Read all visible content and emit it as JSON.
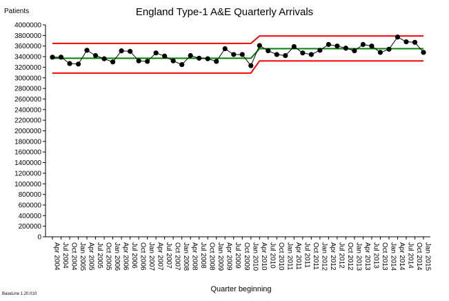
{
  "page": {
    "title": "England Type-1 A&E Quarterly Arrivals",
    "y_axis_label": "Patients",
    "x_axis_label": "Quarter beginning",
    "footnote": "BaseLine 1.20.010"
  },
  "colors": {
    "data_line": "#000000",
    "marker": "#000000",
    "mean_line": "#008000",
    "control_limits": "#ff0000",
    "axis": "#000000"
  },
  "chart_data": {
    "type": "line",
    "title": "England Type-1 A&E Quarterly Arrivals",
    "xlabel": "Quarter beginning",
    "ylabel": "Patients",
    "ylim": [
      0,
      4000000
    ],
    "y_ticks": [
      0,
      200000,
      400000,
      600000,
      800000,
      1000000,
      1200000,
      1400000,
      1600000,
      1800000,
      2000000,
      2200000,
      2400000,
      2600000,
      2800000,
      3000000,
      3200000,
      3400000,
      3600000,
      3800000,
      4000000
    ],
    "grid": false,
    "categories": [
      "Apr 2004",
      "Jul 2004",
      "Oct 2004",
      "Jan 2005",
      "Apr 2005",
      "Jul 2005",
      "Oct 2005",
      "Jan 2006",
      "Apr 2006",
      "Jul 2006",
      "Oct 2006",
      "Jan 2007",
      "Apr 2007",
      "Jul 2007",
      "Oct 2007",
      "Jan 2008",
      "Apr 2008",
      "Jul 2008",
      "Oct 2008",
      "Jan 2009",
      "Apr 2009",
      "Jul 2009",
      "Oct 2009",
      "Jan 2010",
      "Apr 2010",
      "Jul 2010",
      "Oct 2010",
      "Jan 2011",
      "Apr 2011",
      "Jul 2011",
      "Oct 2011",
      "Jan 2012",
      "Apr 2012",
      "Jul 2012",
      "Oct 2012",
      "Jan 2013",
      "Apr 2013",
      "Jul 2013",
      "Oct 2013",
      "Jan 2014",
      "Apr 2014",
      "Jul 2014",
      "Oct 2014",
      "Jan 2015"
    ],
    "series": [
      {
        "role": "data",
        "values": [
          3390000,
          3390000,
          3270000,
          3260000,
          3520000,
          3420000,
          3360000,
          3300000,
          3510000,
          3500000,
          3320000,
          3310000,
          3470000,
          3410000,
          3320000,
          3250000,
          3420000,
          3370000,
          3360000,
          3310000,
          3550000,
          3440000,
          3440000,
          3230000,
          3610000,
          3510000,
          3440000,
          3420000,
          3590000,
          3470000,
          3440000,
          3520000,
          3630000,
          3600000,
          3560000,
          3510000,
          3630000,
          3600000,
          3480000,
          3540000,
          3770000,
          3680000,
          3670000,
          3480000
        ]
      },
      {
        "role": "mean",
        "values": [
          3370000,
          3370000,
          3370000,
          3370000,
          3370000,
          3370000,
          3370000,
          3370000,
          3370000,
          3370000,
          3370000,
          3370000,
          3370000,
          3370000,
          3370000,
          3370000,
          3370000,
          3370000,
          3370000,
          3370000,
          3370000,
          3370000,
          3370000,
          3370000,
          3550000,
          3550000,
          3550000,
          3550000,
          3550000,
          3550000,
          3550000,
          3550000,
          3550000,
          3550000,
          3550000,
          3550000,
          3550000,
          3550000,
          3550000,
          3550000,
          3550000,
          3550000,
          3550000,
          3550000
        ]
      },
      {
        "role": "upper_limit",
        "values": [
          3650000,
          3650000,
          3650000,
          3650000,
          3650000,
          3650000,
          3650000,
          3650000,
          3650000,
          3650000,
          3650000,
          3650000,
          3650000,
          3650000,
          3650000,
          3650000,
          3650000,
          3650000,
          3650000,
          3650000,
          3650000,
          3650000,
          3650000,
          3650000,
          3790000,
          3790000,
          3790000,
          3790000,
          3790000,
          3790000,
          3790000,
          3790000,
          3790000,
          3790000,
          3790000,
          3790000,
          3790000,
          3790000,
          3790000,
          3790000,
          3790000,
          3790000,
          3790000,
          3790000
        ]
      },
      {
        "role": "lower_limit",
        "values": [
          3090000,
          3090000,
          3090000,
          3090000,
          3090000,
          3090000,
          3090000,
          3090000,
          3090000,
          3090000,
          3090000,
          3090000,
          3090000,
          3090000,
          3090000,
          3090000,
          3090000,
          3090000,
          3090000,
          3090000,
          3090000,
          3090000,
          3090000,
          3090000,
          3320000,
          3320000,
          3320000,
          3320000,
          3320000,
          3320000,
          3320000,
          3320000,
          3320000,
          3320000,
          3320000,
          3320000,
          3320000,
          3320000,
          3320000,
          3320000,
          3320000,
          3320000,
          3320000,
          3320000
        ]
      }
    ]
  }
}
